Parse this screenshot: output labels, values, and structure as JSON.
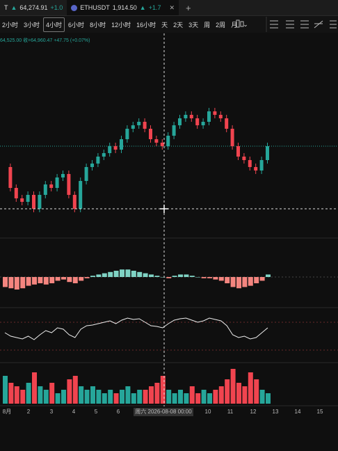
{
  "tabs": [
    {
      "symbol": "T",
      "arrow": "▲",
      "price": "64,274.91",
      "change": "+1.0"
    },
    {
      "symbol": "ETHUSDT",
      "arrow": "▲",
      "price": "1,914.50",
      "change": "+1.7"
    }
  ],
  "intervals": [
    "2小时",
    "3小时",
    "4小时",
    "6小时",
    "8小时",
    "12小时",
    "16小时",
    "天",
    "2天",
    "3天",
    "周",
    "2周",
    "月"
  ],
  "selected_interval": "4小时",
  "quote": {
    "open": "64,525.00",
    "close": "收=64,960.47",
    "change": "+47.75 (+0.07%)"
  },
  "chart": {
    "close": [
      64360,
      63760,
      63460,
      63360,
      63560,
      63160,
      63560,
      63860,
      63760,
      64060,
      64160,
      63560,
      63160,
      63960,
      64360,
      64460,
      64660,
      64760,
      64960,
      64860,
      65160,
      65460,
      65560,
      65660,
      65460,
      65160,
      65060,
      64960,
      65260,
      65560,
      65760,
      65860,
      65760,
      65560,
      65660,
      65960,
      65860,
      65760,
      65460,
      64960,
      64660,
      64560,
      64360,
      64260,
      64560,
      64960
    ],
    "macd_hist": [
      -8,
      -9,
      -10,
      -9,
      -7,
      -6,
      -5,
      -6,
      -5,
      -3,
      -2,
      -4,
      -5,
      -3,
      -1,
      1,
      2,
      3,
      4,
      5,
      6,
      6,
      5,
      4,
      3,
      2,
      1,
      0,
      -1,
      1,
      2,
      2,
      1,
      0,
      -1,
      -1,
      -2,
      -3,
      -5,
      -8,
      -9,
      -8,
      -7,
      -5,
      -3,
      2
    ],
    "rsi": [
      45,
      40,
      38,
      36,
      40,
      35,
      42,
      48,
      45,
      52,
      50,
      42,
      38,
      50,
      55,
      56,
      58,
      60,
      62,
      58,
      63,
      66,
      64,
      65,
      60,
      55,
      54,
      52,
      58,
      63,
      65,
      66,
      63,
      60,
      62,
      66,
      64,
      62,
      55,
      42,
      38,
      40,
      36,
      38,
      45,
      52
    ],
    "volume": [
      8,
      6,
      5,
      4,
      6,
      9,
      5,
      4,
      6,
      3,
      4,
      7,
      8,
      5,
      4,
      5,
      4,
      3,
      4,
      3,
      4,
      5,
      3,
      4,
      4,
      5,
      6,
      8,
      4,
      3,
      4,
      3,
      5,
      3,
      4,
      3,
      4,
      5,
      7,
      10,
      6,
      5,
      9,
      7,
      4,
      3
    ]
  },
  "x_axis": {
    "labels": [
      "8月",
      "2",
      "3",
      "4",
      "5",
      "6",
      "10",
      "11",
      "12",
      "13",
      "14",
      "15"
    ],
    "crosshair_label": "周六 2026-08-08  00:00"
  }
}
